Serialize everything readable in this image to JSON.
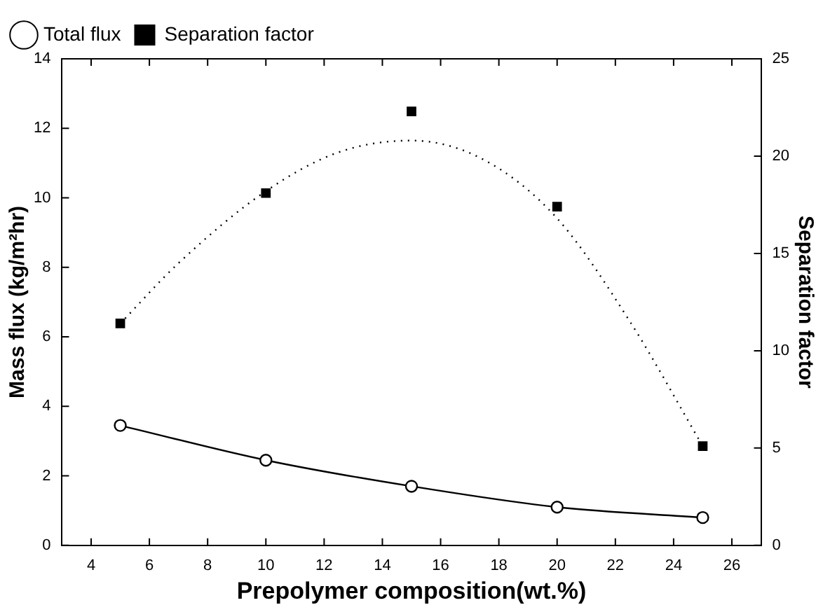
{
  "chart_data": {
    "type": "line",
    "xlabel": "Prepolymer composition(wt.%)",
    "ylabel": "Mass flux (kg/m²hr)",
    "y2label": "Separation factor",
    "xlim": [
      3,
      27
    ],
    "xticks": [
      4,
      6,
      8,
      10,
      12,
      14,
      16,
      18,
      20,
      22,
      24,
      26
    ],
    "ylim": [
      0,
      14
    ],
    "yticks": [
      0,
      2,
      4,
      6,
      8,
      10,
      12,
      14
    ],
    "y2lim": [
      0,
      25
    ],
    "y2ticks": [
      0,
      5,
      10,
      15,
      20,
      25
    ],
    "legend": "top left",
    "grid": false,
    "series": [
      {
        "name": "Total flux",
        "color": "#000000",
        "marker": "circle",
        "line_style": "solid",
        "x": [
          5,
          10,
          15,
          20,
          25
        ],
        "values": [
          3.45,
          2.45,
          1.7,
          1.1,
          0.8
        ]
      },
      {
        "name": "Separation factor",
        "type": "scatter",
        "color": "#000000",
        "marker": "square",
        "axis": "y2",
        "x": [
          5,
          10,
          15,
          20,
          25
        ],
        "values": [
          11.4,
          18.1,
          22.3,
          17.4,
          5.1
        ]
      },
      {
        "type": "line",
        "color": "#000000",
        "marker": "none",
        "line_style": "dotted",
        "axis": "y2",
        "x": [
          5,
          7,
          10,
          12.5,
          15,
          17.5,
          20,
          22.5,
          25
        ],
        "values": [
          11.4,
          14.5,
          18.2,
          20.2,
          20.8,
          19.8,
          16.8,
          11.5,
          5.1
        ]
      }
    ]
  }
}
